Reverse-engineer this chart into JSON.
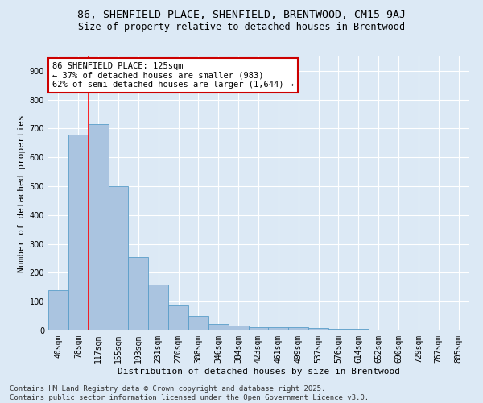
{
  "title_line1": "86, SHENFIELD PLACE, SHENFIELD, BRENTWOOD, CM15 9AJ",
  "title_line2": "Size of property relative to detached houses in Brentwood",
  "xlabel": "Distribution of detached houses by size in Brentwood",
  "ylabel": "Number of detached properties",
  "categories": [
    "40sqm",
    "78sqm",
    "117sqm",
    "155sqm",
    "193sqm",
    "231sqm",
    "270sqm",
    "308sqm",
    "346sqm",
    "384sqm",
    "423sqm",
    "461sqm",
    "499sqm",
    "537sqm",
    "576sqm",
    "614sqm",
    "652sqm",
    "690sqm",
    "729sqm",
    "767sqm",
    "805sqm"
  ],
  "values": [
    140,
    680,
    715,
    500,
    255,
    158,
    88,
    50,
    22,
    18,
    12,
    10,
    10,
    7,
    5,
    5,
    3,
    2,
    2,
    2,
    2
  ],
  "bar_color": "#aac4e0",
  "bar_edge_color": "#5a9ec9",
  "red_line_x": 2,
  "annotation_text": "86 SHENFIELD PLACE: 125sqm\n← 37% of detached houses are smaller (983)\n62% of semi-detached houses are larger (1,644) →",
  "annotation_box_color": "#ffffff",
  "annotation_box_edge": "#cc0000",
  "ylim": [
    0,
    950
  ],
  "yticks": [
    0,
    100,
    200,
    300,
    400,
    500,
    600,
    700,
    800,
    900
  ],
  "background_color": "#dce9f5",
  "plot_bg_color": "#dce9f5",
  "grid_color": "#ffffff",
  "footer_line1": "Contains HM Land Registry data © Crown copyright and database right 2025.",
  "footer_line2": "Contains public sector information licensed under the Open Government Licence v3.0.",
  "title_fontsize": 9.5,
  "subtitle_fontsize": 8.5,
  "axis_label_fontsize": 8,
  "tick_fontsize": 7,
  "annotation_fontsize": 7.5,
  "footer_fontsize": 6.5
}
